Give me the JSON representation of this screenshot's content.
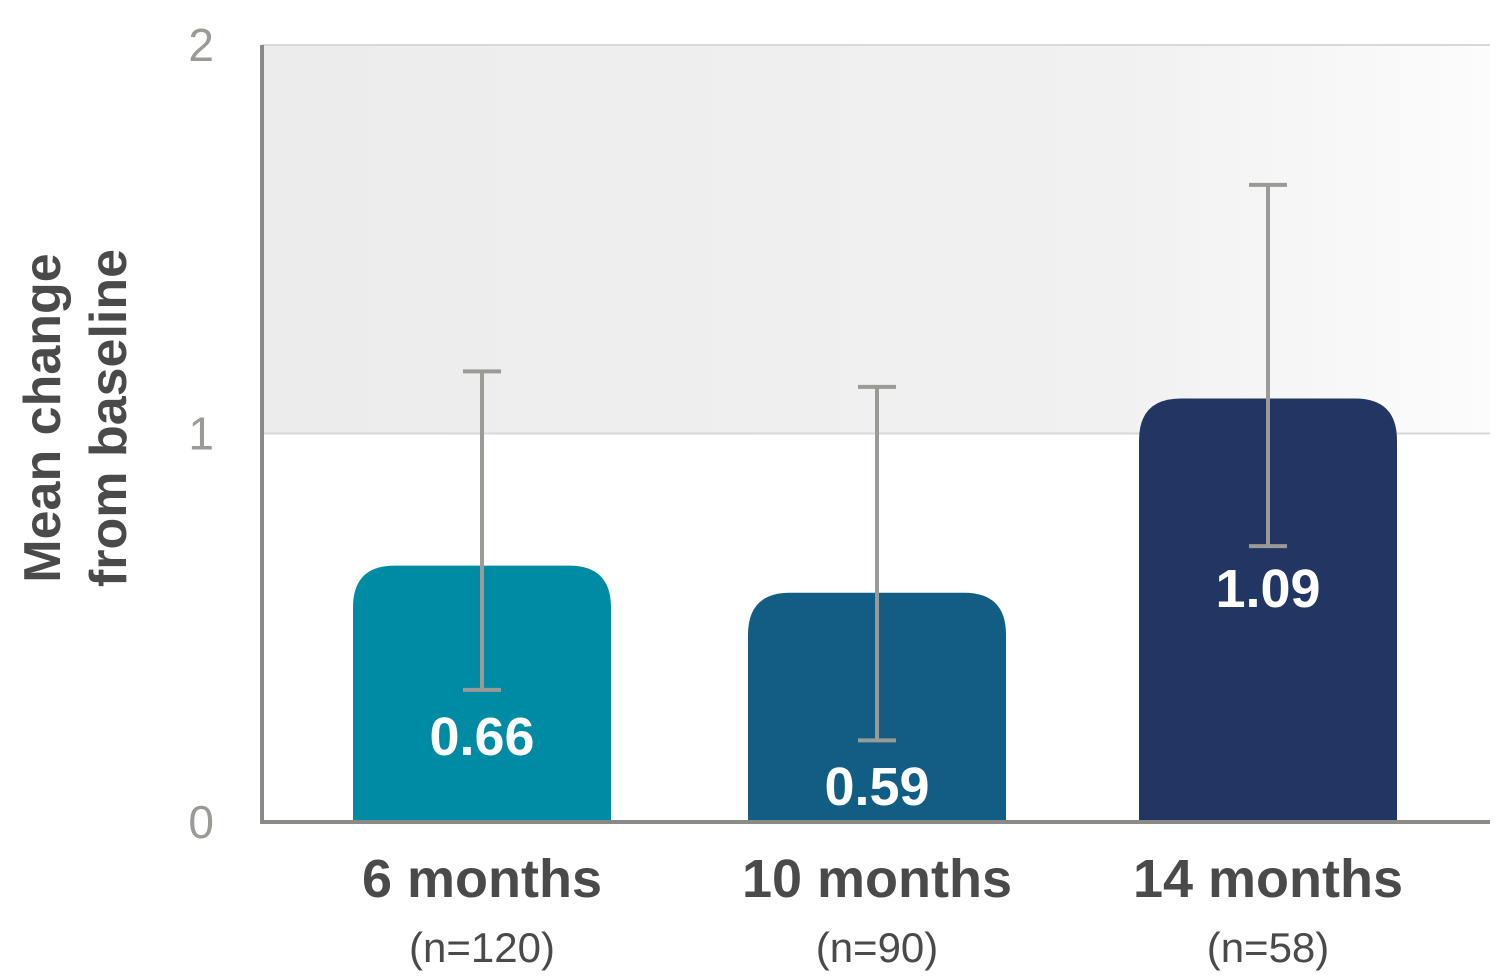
{
  "chart_data": {
    "type": "bar",
    "ylabel": [
      "Mean change",
      "from baseline"
    ],
    "ylim": [
      0,
      2
    ],
    "yticks": [
      {
        "value": 0,
        "label": "0"
      },
      {
        "value": 1,
        "label": "1"
      },
      {
        "value": 2,
        "label": "2"
      }
    ],
    "categories": [
      {
        "label": "6 months",
        "sublabel": "(n=120)"
      },
      {
        "label": "10 months",
        "sublabel": "(n=90)"
      },
      {
        "label": "14 months",
        "sublabel": "(n=58)"
      }
    ],
    "values": [
      0.66,
      0.59,
      1.09
    ],
    "value_labels": [
      "0.66",
      "0.59",
      "1.09"
    ],
    "error_bars": [
      {
        "low": 0.34,
        "high": 1.16
      },
      {
        "low": 0.21,
        "high": 1.12
      },
      {
        "low": 0.71,
        "high": 1.64
      }
    ],
    "bar_colors": [
      "#008ba5",
      "#125d83",
      "#223664"
    ],
    "error_bar_color": "#9a9a97",
    "shaded_band": {
      "from": 1,
      "to": 2,
      "color": "#efefef"
    },
    "grid": true,
    "legend": false
  }
}
